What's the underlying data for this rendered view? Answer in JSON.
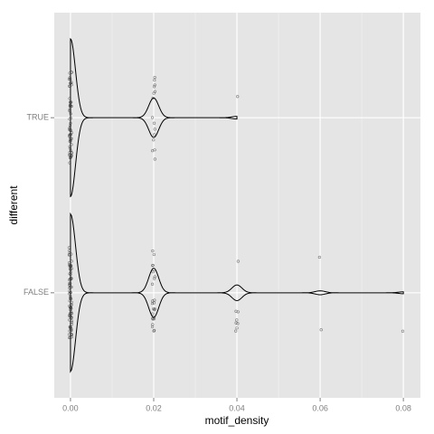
{
  "chart_data": {
    "type": "violin",
    "x_label": "motif_density",
    "y_label": "different",
    "categories": [
      "TRUE",
      "FALSE"
    ],
    "groups": [
      {
        "values": [
          0,
          0.02,
          0.04
        ],
        "counts": [
          60,
          15,
          1
        ]
      },
      {
        "values": [
          0,
          0.02,
          0.04,
          0.06,
          0.08
        ],
        "counts": [
          80,
          25,
          8,
          2,
          1
        ]
      }
    ],
    "xlim": [
      -0.0039,
      0.0841
    ],
    "xticks": [
      {
        "value": 0,
        "label": "0.00"
      },
      0.02,
      0.04,
      0.06,
      0.08
    ],
    "grid": true,
    "color": "#000000",
    "point_color": "#333333",
    "panel_color": "#e5e5e5"
  }
}
